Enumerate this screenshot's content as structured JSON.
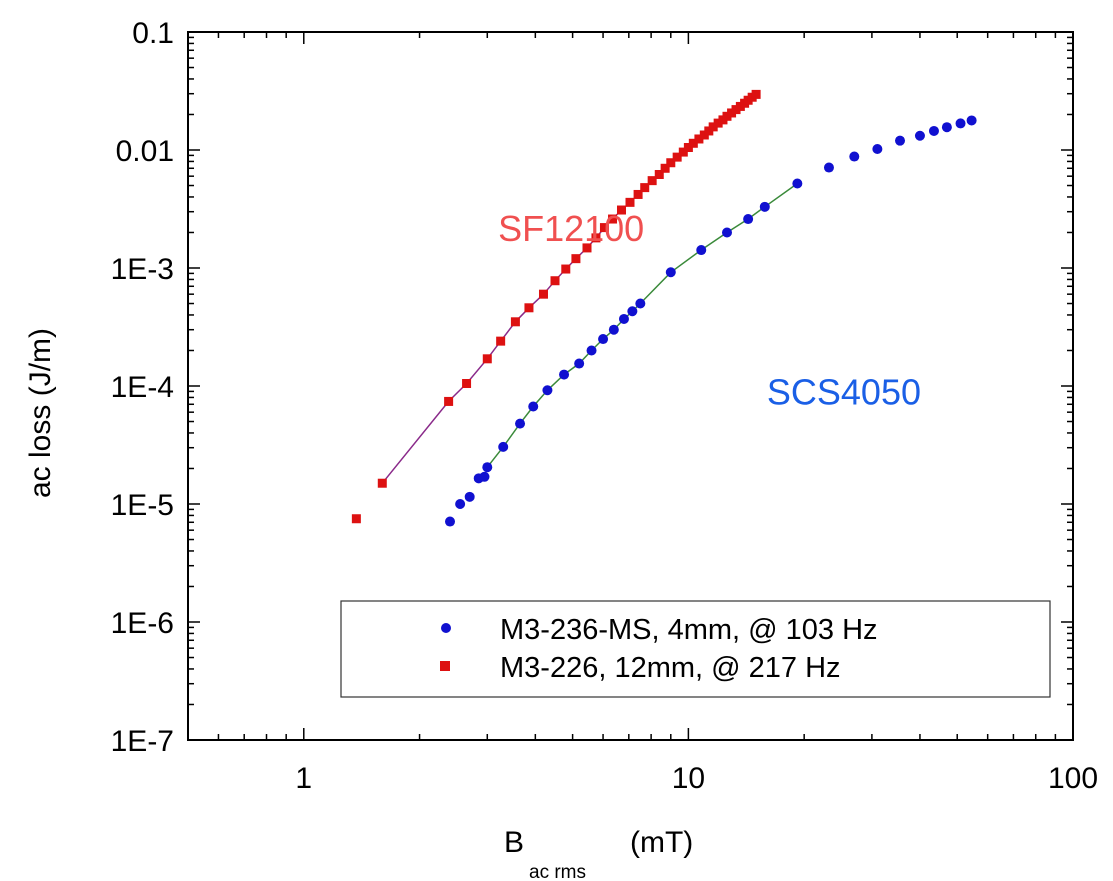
{
  "chart_data": {
    "type": "scatter",
    "title": "",
    "ylabel": "ac loss  (J/m)",
    "xlabel": {
      "main": "B",
      "sub": "ac rms",
      "unit": "(mT)"
    },
    "xscale": "log",
    "yscale": "log",
    "xlim": [
      0.5,
      100
    ],
    "ylim": [
      1e-07,
      0.1
    ],
    "x_tick_labels": [
      {
        "value": 1,
        "label": "1"
      },
      {
        "value": 10,
        "label": "10"
      },
      {
        "value": 100,
        "label": "100"
      }
    ],
    "y_tick_labels": [
      {
        "value": 0.1,
        "label": "0.1"
      },
      {
        "value": 0.01,
        "label": "0.01"
      },
      {
        "value": 0.001,
        "label": "1E-3"
      },
      {
        "value": 0.0001,
        "label": "1E-4"
      },
      {
        "value": 1e-05,
        "label": "1E-5"
      },
      {
        "value": 1e-06,
        "label": "1E-6"
      },
      {
        "value": 1e-07,
        "label": "1E-7"
      }
    ],
    "grid": false,
    "legend_position": "bottom-right",
    "annotations": [
      {
        "text": "SF12100",
        "color": "#f05050",
        "x": 3.2,
        "y": 0.0017
      },
      {
        "text": "SCS4050",
        "color": "#1a5fe6",
        "x": 16,
        "y": 7e-05
      }
    ],
    "series": [
      {
        "name": "M3-236-MS, 4mm, @ 103 Hz",
        "marker": "circle",
        "color": "#1010d0",
        "fit_color": "#3a8a3a",
        "x": [
          2.4,
          2.55,
          2.7,
          2.85,
          2.95,
          3.0,
          3.3,
          3.65,
          3.95,
          4.3,
          4.75,
          5.2,
          5.6,
          6.0,
          6.4,
          6.8,
          7.15,
          7.5,
          9.0,
          10.8,
          12.6,
          14.3,
          15.8,
          19.2,
          23.2,
          27.0,
          31.0,
          35.5,
          40.0,
          43.5,
          47.0,
          51.0,
          54.5
        ],
        "y": [
          7.1e-06,
          1e-05,
          1.15e-05,
          1.65e-05,
          1.7e-05,
          2.05e-05,
          3.05e-05,
          4.8e-05,
          6.7e-05,
          9.2e-05,
          0.000125,
          0.000155,
          0.0002,
          0.00025,
          0.0003,
          0.00037,
          0.00043,
          0.0005,
          0.00092,
          0.00142,
          0.002,
          0.0026,
          0.0033,
          0.0052,
          0.0071,
          0.0088,
          0.0102,
          0.012,
          0.0132,
          0.0145,
          0.0156,
          0.0168,
          0.0178
        ],
        "fit_range": [
          3.0,
          19.2
        ]
      },
      {
        "name": "M3-226, 12mm, @ 217 Hz",
        "marker": "square",
        "color": "#dd1111",
        "fit_color": "#8a2a8a",
        "x": [
          1.37,
          1.6,
          2.38,
          2.65,
          3.0,
          3.25,
          3.55,
          3.85,
          4.2,
          4.5,
          4.8,
          5.1,
          5.45,
          5.75,
          6.05,
          6.35,
          6.7,
          7.05,
          7.4,
          7.7,
          8.05,
          8.4,
          8.7,
          9.0,
          9.35,
          9.7,
          10.0,
          10.3,
          10.65,
          11.0,
          11.3,
          11.6,
          11.95,
          12.3,
          12.6,
          12.95,
          13.3,
          13.65,
          14.0,
          14.3,
          14.65,
          15.0
        ],
        "y": [
          7.5e-06,
          1.5e-05,
          7.4e-05,
          0.000105,
          0.00017,
          0.00024,
          0.00035,
          0.00046,
          0.0006,
          0.00078,
          0.00098,
          0.0012,
          0.00148,
          0.0018,
          0.0022,
          0.0026,
          0.0031,
          0.0036,
          0.0042,
          0.0048,
          0.0055,
          0.0062,
          0.007,
          0.0078,
          0.0087,
          0.0096,
          0.0105,
          0.0114,
          0.0124,
          0.0134,
          0.0145,
          0.0157,
          0.0169,
          0.018,
          0.0193,
          0.0206,
          0.022,
          0.0234,
          0.0249,
          0.0264,
          0.028,
          0.0296
        ],
        "fit_range": [
          1.6,
          15.0
        ]
      }
    ]
  }
}
